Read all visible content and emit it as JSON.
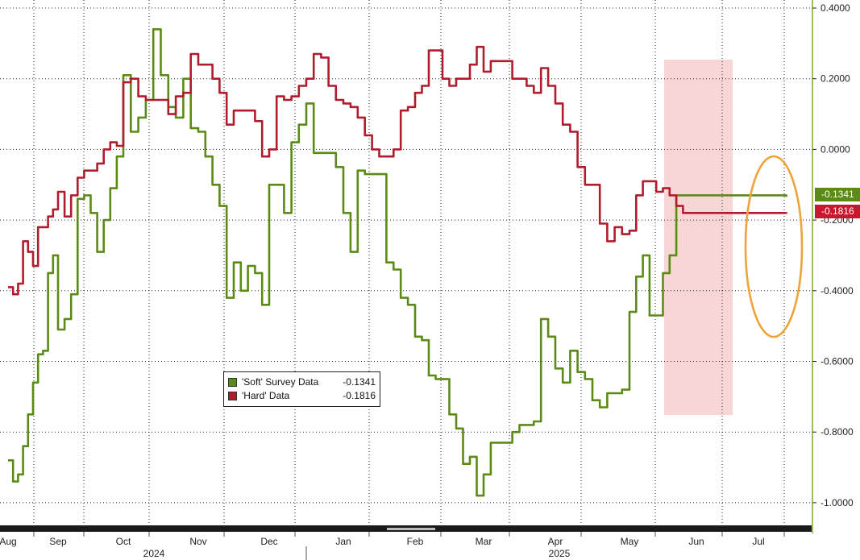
{
  "chart_data": {
    "type": "line",
    "title": "",
    "xlabel": "",
    "ylabel": "",
    "ylim": [
      -1.05,
      0.4
    ],
    "yticks": [
      "0.4000",
      "0.2000",
      "0.0000",
      "-0.2000",
      "-0.4000",
      "-0.6000",
      "-0.8000",
      "-1.0000"
    ],
    "ytick_values": [
      0.4,
      0.2,
      0.0,
      -0.2,
      -0.4,
      -0.6,
      -0.8,
      -1.0
    ],
    "months": [
      "Aug",
      "Sep",
      "Oct",
      "Nov",
      "Dec",
      "Jan",
      "Feb",
      "Mar",
      "Apr",
      "May",
      "Jun",
      "Jul"
    ],
    "years": [
      "2024",
      "2025"
    ],
    "grid": true,
    "legend_position": "lower-left",
    "series": [
      {
        "name": "'Soft' Survey Data",
        "last_value": "-0.1341",
        "color": "#5b8a16",
        "x": [
          0,
          0.1,
          0.2,
          0.3,
          0.4,
          0.5,
          0.6,
          0.7,
          0.8,
          0.9,
          1.0,
          1.1,
          1.2,
          1.3,
          1.4,
          1.5,
          1.6,
          1.7,
          1.8,
          1.9,
          2.0,
          2.1,
          2.2,
          2.3,
          2.4,
          2.5,
          2.6,
          2.7,
          2.8,
          2.9,
          3.0,
          3.1,
          3.2,
          3.3,
          3.4,
          3.5,
          3.6,
          3.7,
          3.8,
          3.9,
          4.0,
          4.1,
          4.2,
          4.3,
          4.4,
          4.5,
          4.6,
          4.7,
          4.8,
          4.9,
          5.0,
          5.1,
          5.2,
          5.3,
          5.4,
          5.5,
          5.6,
          5.7,
          5.8,
          5.9,
          6.0,
          6.1,
          6.2,
          6.3,
          6.4,
          6.5,
          6.6,
          6.7,
          6.8,
          6.9,
          7.0,
          7.1,
          7.2,
          7.3,
          7.4,
          7.5,
          7.6,
          7.7,
          7.8,
          7.9,
          8.0,
          8.1,
          8.2,
          8.3,
          8.4,
          8.5,
          8.6,
          8.7,
          8.8,
          8.9,
          9.0,
          9.1,
          9.2,
          9.3,
          9.4,
          9.5,
          9.6,
          9.7,
          9.8,
          9.9,
          10.0,
          10.1,
          10.2,
          10.3,
          10.4,
          10.5,
          10.6,
          10.7,
          10.8,
          10.9,
          11.0,
          11.1,
          11.2,
          11.3,
          11.4,
          11.45
        ],
        "y": [
          -0.88,
          -0.94,
          -0.92,
          -0.84,
          -0.75,
          -0.66,
          -0.58,
          -0.57,
          -0.35,
          -0.3,
          -0.51,
          -0.48,
          -0.41,
          -0.14,
          -0.13,
          -0.18,
          -0.29,
          -0.2,
          -0.11,
          -0.02,
          0.21,
          0.05,
          0.09,
          0.14,
          0.34,
          0.21,
          0.12,
          0.09,
          0.2,
          0.06,
          0.05,
          -0.02,
          -0.1,
          -0.16,
          -0.42,
          -0.32,
          -0.4,
          -0.33,
          -0.35,
          -0.44,
          -0.1,
          -0.1,
          -0.18,
          0.02,
          0.07,
          0.13,
          -0.01,
          -0.01,
          -0.01,
          -0.05,
          -0.18,
          -0.29,
          -0.06,
          -0.07,
          -0.07,
          -0.07,
          -0.32,
          -0.34,
          -0.42,
          -0.44,
          -0.53,
          -0.54,
          -0.64,
          -0.65,
          -0.65,
          -0.75,
          -0.79,
          -0.89,
          -0.87,
          -0.98,
          -0.92,
          -0.83,
          -0.83,
          -0.83,
          -0.8,
          -0.78,
          -0.78,
          -0.77,
          -0.48,
          -0.53,
          -0.62,
          -0.66,
          -0.57,
          -0.63,
          -0.65,
          -0.71,
          -0.73,
          -0.69,
          -0.69,
          -0.68,
          -0.46,
          -0.36,
          -0.3,
          -0.47,
          -0.47,
          -0.35,
          -0.3,
          -0.13,
          -0.13,
          -0.13,
          -0.13,
          -0.13,
          -0.13,
          -0.13,
          -0.13,
          -0.13,
          -0.13,
          -0.13,
          -0.13,
          -0.13,
          -0.13,
          -0.13,
          -0.13,
          -0.13,
          -0.13,
          -0.1341
        ]
      },
      {
        "name": "'Hard' Data",
        "last_value": "-0.1816",
        "color": "#b01c2e",
        "x": [
          0,
          0.1,
          0.2,
          0.3,
          0.4,
          0.5,
          0.6,
          0.7,
          0.8,
          0.9,
          1.0,
          1.1,
          1.2,
          1.3,
          1.4,
          1.5,
          1.6,
          1.7,
          1.8,
          1.9,
          2.0,
          2.1,
          2.2,
          2.3,
          2.4,
          2.5,
          2.6,
          2.7,
          2.8,
          2.9,
          3.0,
          3.1,
          3.2,
          3.3,
          3.4,
          3.5,
          3.6,
          3.7,
          3.8,
          3.9,
          4.0,
          4.1,
          4.2,
          4.3,
          4.4,
          4.5,
          4.6,
          4.7,
          4.8,
          4.9,
          5.0,
          5.1,
          5.2,
          5.3,
          5.4,
          5.5,
          5.6,
          5.7,
          5.8,
          5.9,
          6.0,
          6.1,
          6.2,
          6.3,
          6.4,
          6.5,
          6.6,
          6.7,
          6.8,
          6.9,
          7.0,
          7.1,
          7.2,
          7.3,
          7.4,
          7.5,
          7.6,
          7.7,
          7.8,
          7.9,
          8.0,
          8.1,
          8.2,
          8.3,
          8.4,
          8.5,
          8.6,
          8.7,
          8.8,
          8.9,
          9.0,
          9.1,
          9.2,
          9.3,
          9.4,
          9.5,
          9.6,
          9.7,
          9.8,
          9.9,
          10.0,
          10.1,
          10.2,
          10.3,
          10.4,
          10.5,
          10.6,
          10.7,
          10.8,
          10.9,
          11.0,
          11.1,
          11.2,
          11.3,
          11.4,
          11.45
        ],
        "y": [
          -0.39,
          -0.41,
          -0.38,
          -0.26,
          -0.29,
          -0.33,
          -0.22,
          -0.22,
          -0.19,
          -0.17,
          -0.12,
          -0.19,
          -0.13,
          -0.08,
          -0.06,
          -0.06,
          -0.04,
          0.0,
          0.02,
          0.01,
          0.19,
          0.2,
          0.15,
          0.14,
          0.14,
          0.14,
          0.1,
          0.15,
          0.16,
          0.27,
          0.24,
          0.24,
          0.2,
          0.16,
          0.07,
          0.11,
          0.11,
          0.11,
          0.08,
          -0.02,
          0.0,
          0.15,
          0.14,
          0.15,
          0.18,
          0.2,
          0.27,
          0.26,
          0.18,
          0.14,
          0.13,
          0.12,
          0.09,
          0.04,
          0.0,
          -0.02,
          -0.02,
          0.0,
          0.11,
          0.12,
          0.16,
          0.18,
          0.28,
          0.28,
          0.2,
          0.18,
          0.2,
          0.2,
          0.24,
          0.29,
          0.22,
          0.25,
          0.25,
          0.25,
          0.2,
          0.2,
          0.18,
          0.16,
          0.23,
          0.18,
          0.13,
          0.07,
          0.05,
          -0.05,
          -0.1,
          -0.1,
          -0.21,
          -0.26,
          -0.22,
          -0.24,
          -0.23,
          -0.13,
          -0.09,
          -0.09,
          -0.12,
          -0.11,
          -0.13,
          -0.16,
          -0.18,
          -0.18,
          -0.18,
          -0.18,
          -0.18,
          -0.18,
          -0.18,
          -0.18,
          -0.18,
          -0.18,
          -0.18,
          -0.18,
          -0.18,
          -0.18,
          -0.18,
          -0.18,
          -0.18,
          -0.1816
        ]
      }
    ]
  },
  "colors": {
    "soft": "#5b8a16",
    "hard": "#b01c2e",
    "highlight_band": "#f7d2d2",
    "ellipse": "#f0a33a",
    "axis_line": "#7cab2c"
  },
  "legend": {
    "soft_name": "'Soft' Survey Data",
    "soft_value": "-0.1341",
    "hard_name": "'Hard' Data",
    "hard_value": "-0.1816"
  },
  "end_tags": {
    "soft": "-0.1341",
    "hard": "-0.1816"
  }
}
